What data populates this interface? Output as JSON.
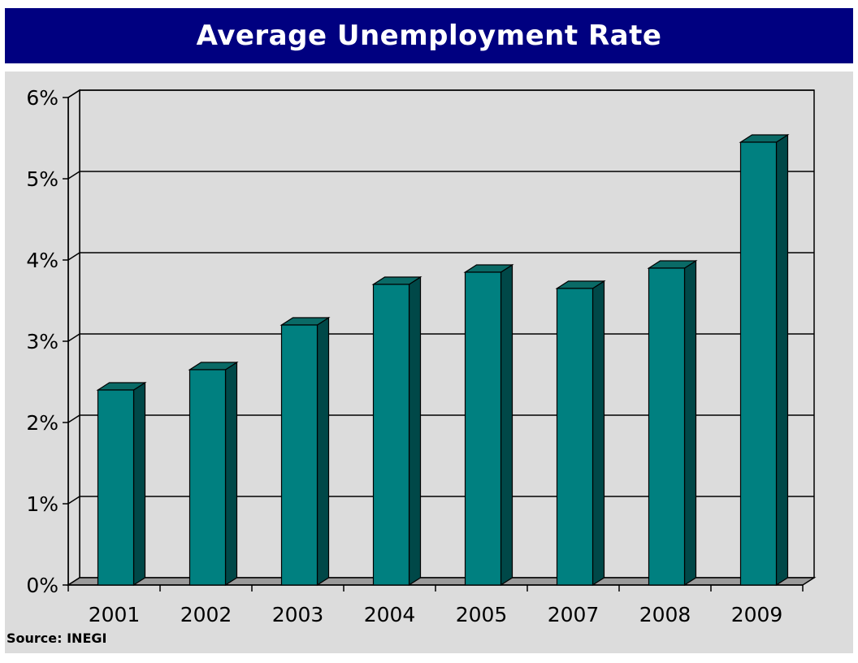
{
  "chart_data": {
    "type": "bar",
    "title": "Average Unemployment Rate",
    "categories": [
      "2001",
      "2002",
      "2003",
      "2004",
      "2005",
      "2007",
      "2008",
      "2009"
    ],
    "values": [
      2.4,
      2.65,
      3.2,
      3.7,
      3.85,
      3.65,
      3.9,
      5.45
    ],
    "ylim": [
      0,
      6
    ],
    "yticks": [
      0,
      1,
      2,
      3,
      4,
      5,
      6
    ],
    "ytick_labels": [
      "0%",
      "1%",
      "2%",
      "3%",
      "4%",
      "5%",
      "6%"
    ],
    "xlabel": "",
    "ylabel": "",
    "grid": true,
    "legend": "none",
    "source": "Source: INEGI",
    "colors": {
      "bar_front": "#008080",
      "bar_side": "#004848",
      "bar_top": "#0a6a66",
      "title_bg": "#000080",
      "plot_bg": "#dcdcdc",
      "floor": "#9a9a9a"
    }
  }
}
